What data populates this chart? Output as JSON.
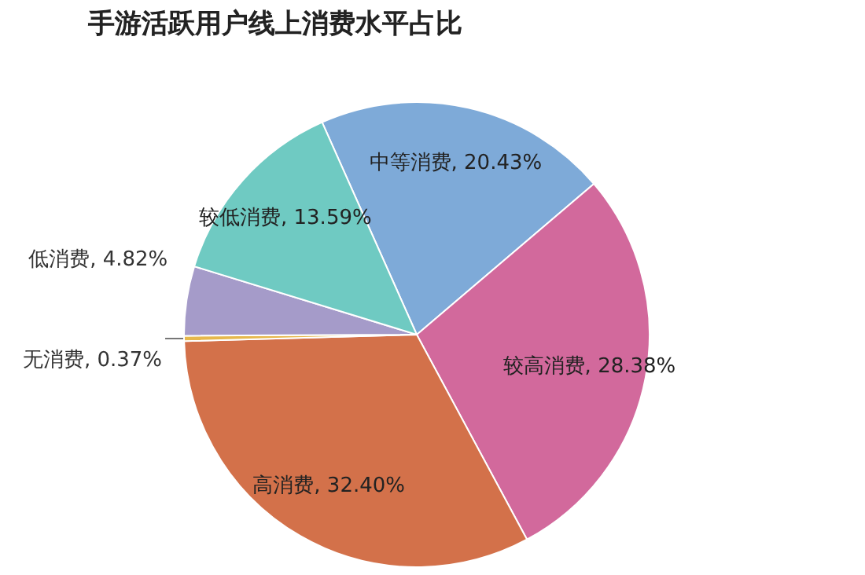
{
  "chart_data": {
    "type": "pie",
    "title": "手游活跃用户线上消费水平占比",
    "categories": [
      "中等消费",
      "较高消费",
      "高消费",
      "无消费",
      "低消费",
      "较低消费"
    ],
    "values": [
      20.43,
      28.38,
      32.4,
      0.37,
      4.82,
      13.59
    ],
    "value_labels": [
      "20.43%",
      "28.38%",
      "32.40%",
      "0.37%",
      "4.82%",
      "13.59%"
    ],
    "colors": [
      "#7eaad8",
      "#d2699c",
      "#d3714a",
      "#e6b84c",
      "#a59bc9",
      "#6fcac2"
    ],
    "legend": false
  }
}
